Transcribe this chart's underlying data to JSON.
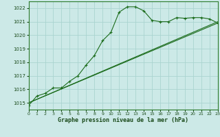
{
  "xlabel": "Graphe pression niveau de la mer (hPa)",
  "xlim": [
    0,
    23
  ],
  "ylim": [
    1014.5,
    1022.5
  ],
  "yticks": [
    1015,
    1016,
    1017,
    1018,
    1019,
    1020,
    1021,
    1022
  ],
  "xticks": [
    0,
    1,
    2,
    3,
    4,
    5,
    6,
    7,
    8,
    9,
    10,
    11,
    12,
    13,
    14,
    15,
    16,
    17,
    18,
    19,
    20,
    21,
    22,
    23
  ],
  "bg_color": "#cce9e7",
  "grid_color": "#aad4d0",
  "line_color": "#1a6b1a",
  "line1": [
    [
      0,
      1014.8
    ],
    [
      1,
      1015.5
    ],
    [
      2,
      1015.7
    ],
    [
      3,
      1016.1
    ],
    [
      4,
      1016.1
    ],
    [
      5,
      1016.6
    ],
    [
      6,
      1017.0
    ],
    [
      7,
      1017.8
    ],
    [
      8,
      1018.5
    ],
    [
      9,
      1019.6
    ],
    [
      10,
      1020.2
    ],
    [
      11,
      1021.7
    ],
    [
      12,
      1022.1
    ],
    [
      13,
      1022.1
    ],
    [
      14,
      1021.8
    ],
    [
      15,
      1021.1
    ],
    [
      16,
      1021.0
    ],
    [
      17,
      1021.0
    ],
    [
      18,
      1021.3
    ],
    [
      19,
      1021.25
    ],
    [
      20,
      1021.3
    ],
    [
      21,
      1021.3
    ],
    [
      22,
      1021.2
    ],
    [
      23,
      1020.9
    ]
  ],
  "line2": [
    [
      0,
      1015.0
    ],
    [
      23,
      1021.0
    ]
  ],
  "line3": [
    [
      0,
      1015.0
    ],
    [
      23,
      1020.9
    ]
  ]
}
